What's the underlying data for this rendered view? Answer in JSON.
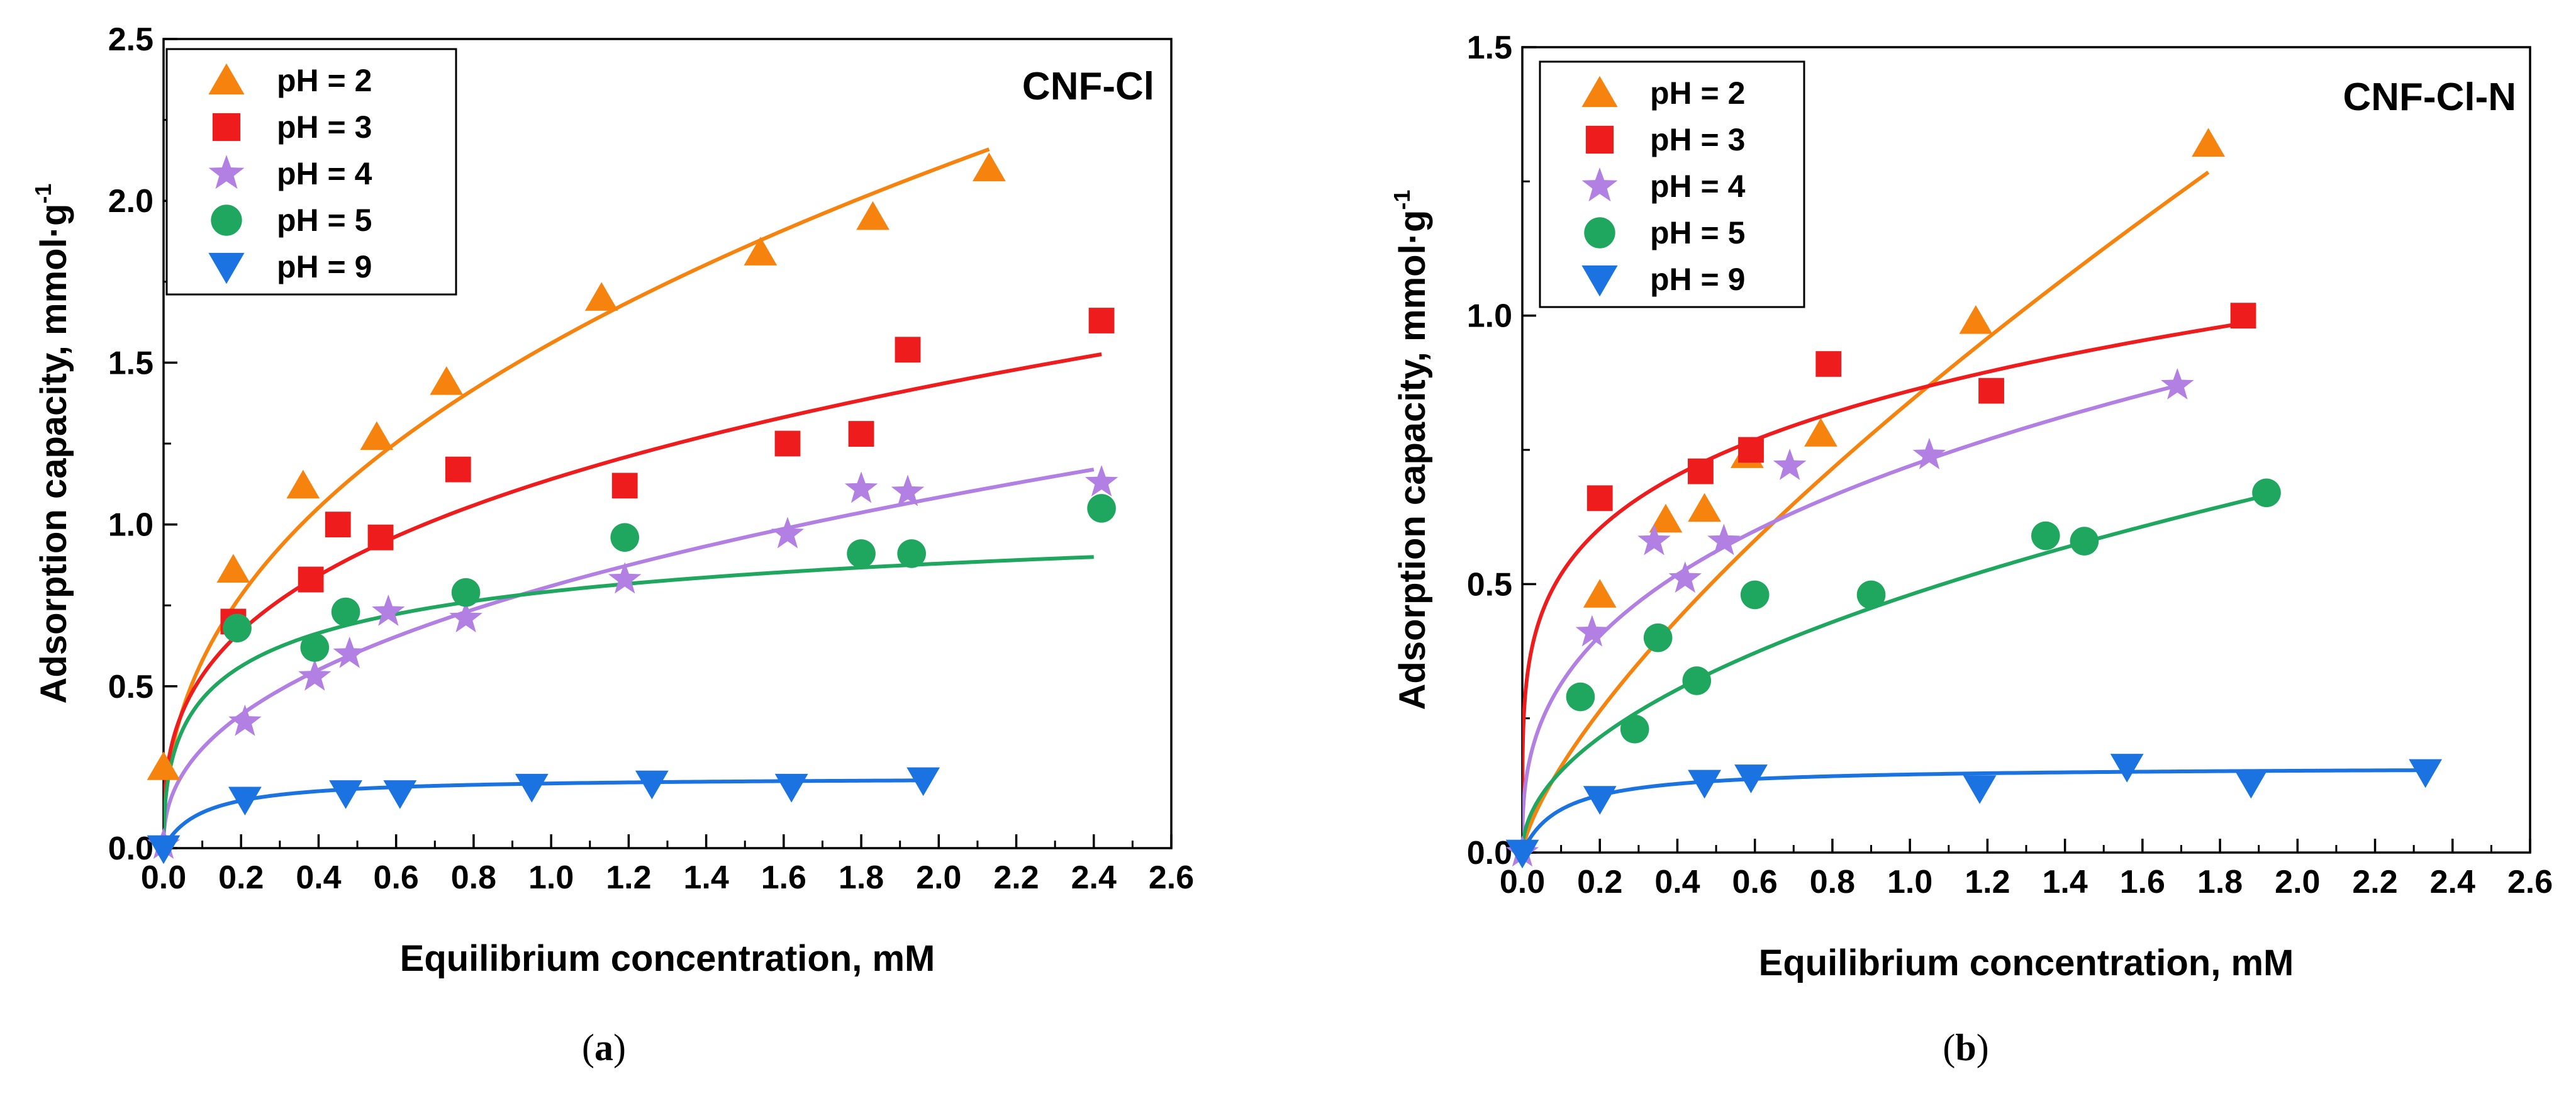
{
  "chart_data": [
    {
      "type": "scatter",
      "panel_label": "(a)",
      "annotation": "CNF-Cl",
      "xlabel": "Equilibrium concentration, mM",
      "ylabel": "Adsorption capacity, mmol·g",
      "ylabel_superscript": "-1",
      "xlim": [
        0.0,
        2.6
      ],
      "ylim": [
        0.0,
        2.5
      ],
      "x_ticks": [
        "0.0",
        "0.2",
        "0.4",
        "0.6",
        "0.8",
        "1.0",
        "1.2",
        "1.4",
        "1.6",
        "1.8",
        "2.0",
        "2.2",
        "2.4",
        "2.6"
      ],
      "y_ticks": [
        "0.0",
        "0.5",
        "1.0",
        "1.5",
        "2.0",
        "2.5"
      ],
      "grid": false,
      "legend_position": "top-left",
      "series": [
        {
          "name": "pH = 2",
          "color": "#F7830F",
          "marker": "triangle-up",
          "points": [
            [
              0.0,
              0.25
            ],
            [
              0.18,
              0.86
            ],
            [
              0.36,
              1.12
            ],
            [
              0.55,
              1.27
            ],
            [
              0.73,
              1.44
            ],
            [
              1.13,
              1.7
            ],
            [
              1.54,
              1.84
            ],
            [
              1.83,
              1.95
            ],
            [
              2.13,
              2.1
            ]
          ],
          "fit": {
            "model": "freundlich",
            "k": 1.56,
            "n": 0.43,
            "x_max": 2.13
          }
        },
        {
          "name": "pH = 3",
          "color": "#EE1C1C",
          "marker": "square",
          "points": [
            [
              0.18,
              0.7
            ],
            [
              0.38,
              0.83
            ],
            [
              0.45,
              1.0
            ],
            [
              0.56,
              0.96
            ],
            [
              0.76,
              1.17
            ],
            [
              1.19,
              1.12
            ],
            [
              1.61,
              1.25
            ],
            [
              1.8,
              1.28
            ],
            [
              1.92,
              1.54
            ],
            [
              2.42,
              1.63
            ]
          ],
          "fit": {
            "model": "freundlich",
            "k": 1.14,
            "n": 0.33,
            "x_max": 2.42
          }
        },
        {
          "name": "pH = 4",
          "color": "#B27FE3",
          "marker": "star",
          "points": [
            [
              0.0,
              0.01
            ],
            [
              0.21,
              0.39
            ],
            [
              0.39,
              0.53
            ],
            [
              0.48,
              0.6
            ],
            [
              0.58,
              0.73
            ],
            [
              0.78,
              0.71
            ],
            [
              1.19,
              0.83
            ],
            [
              1.61,
              0.97
            ],
            [
              1.8,
              1.11
            ],
            [
              1.92,
              1.1
            ],
            [
              2.42,
              1.13
            ]
          ],
          "fit": {
            "model": "freundlich",
            "k": 0.81,
            "n": 0.42,
            "x_max": 2.4
          }
        },
        {
          "name": "pH = 5",
          "color": "#1FA75F",
          "marker": "circle",
          "points": [
            [
              0.19,
              0.68
            ],
            [
              0.39,
              0.62
            ],
            [
              0.47,
              0.73
            ],
            [
              0.78,
              0.79
            ],
            [
              1.19,
              0.96
            ],
            [
              1.8,
              0.91
            ],
            [
              1.93,
              0.91
            ],
            [
              2.42,
              1.05
            ]
          ],
          "fit": {
            "model": "langmuir_freundlich",
            "qmax": 1.19,
            "k": 4.0,
            "n": 0.5,
            "x_max": 2.4
          }
        },
        {
          "name": "pH = 9",
          "color": "#1A73E0",
          "marker": "triangle-down",
          "points": [
            [
              0.0,
              0.0
            ],
            [
              0.21,
              0.15
            ],
            [
              0.47,
              0.17
            ],
            [
              0.61,
              0.17
            ],
            [
              0.95,
              0.19
            ],
            [
              1.26,
              0.2
            ],
            [
              1.62,
              0.19
            ],
            [
              1.96,
              0.21
            ]
          ],
          "fit": {
            "model": "langmuir",
            "qmax": 0.22,
            "k": 10.0,
            "x_max": 1.96
          }
        }
      ]
    },
    {
      "type": "scatter",
      "panel_label": "(b)",
      "annotation": "CNF-Cl-N",
      "xlabel": "Equilibrium concentration, mM",
      "ylabel": "Adsorption capacity, mmol·g",
      "ylabel_superscript": "-1",
      "xlim": [
        0.0,
        2.6
      ],
      "ylim": [
        0.0,
        1.5
      ],
      "x_ticks": [
        "0.0",
        "0.2",
        "0.4",
        "0.6",
        "0.8",
        "1.0",
        "1.2",
        "1.4",
        "1.6",
        "1.8",
        "2.0",
        "2.2",
        "2.4",
        "2.6"
      ],
      "y_ticks": [
        "0.0",
        "0.5",
        "1.0",
        "1.5"
      ],
      "grid": false,
      "legend_position": "top-left",
      "series": [
        {
          "name": "pH = 2",
          "color": "#F7830F",
          "marker": "triangle-up",
          "points": [
            [
              0.2,
              0.48
            ],
            [
              0.37,
              0.62
            ],
            [
              0.47,
              0.64
            ],
            [
              0.58,
              0.74
            ],
            [
              0.77,
              0.78
            ],
            [
              1.17,
              0.99
            ],
            [
              1.77,
              1.32
            ]
          ],
          "fit": {
            "model": "freundlich",
            "k": 0.84,
            "n": 0.72,
            "x_max": 1.77
          }
        },
        {
          "name": "pH = 3",
          "color": "#EE1C1C",
          "marker": "square",
          "points": [
            [
              0.2,
              0.66
            ],
            [
              0.46,
              0.71
            ],
            [
              0.59,
              0.75
            ],
            [
              0.79,
              0.91
            ],
            [
              1.21,
              0.86
            ],
            [
              1.86,
              1.0
            ]
          ],
          "fit": {
            "model": "freundlich",
            "k": 0.86,
            "n": 0.22,
            "x_max": 1.84
          }
        },
        {
          "name": "pH = 4",
          "color": "#B27FE3",
          "marker": "star",
          "points": [
            [
              0.0,
              0.0
            ],
            [
              0.18,
              0.41
            ],
            [
              0.34,
              0.58
            ],
            [
              0.42,
              0.51
            ],
            [
              0.52,
              0.58
            ],
            [
              0.69,
              0.72
            ],
            [
              1.05,
              0.74
            ],
            [
              1.69,
              0.87
            ]
          ],
          "fit": {
            "model": "freundlich",
            "k": 0.72,
            "n": 0.36,
            "x_max": 1.69
          }
        },
        {
          "name": "pH = 5",
          "color": "#1FA75F",
          "marker": "circle",
          "points": [
            [
              0.15,
              0.29
            ],
            [
              0.29,
              0.23
            ],
            [
              0.35,
              0.4
            ],
            [
              0.45,
              0.32
            ],
            [
              0.6,
              0.48
            ],
            [
              0.9,
              0.48
            ],
            [
              1.35,
              0.59
            ],
            [
              1.45,
              0.58
            ],
            [
              1.92,
              0.67
            ]
          ],
          "fit": {
            "model": "freundlich",
            "k": 0.48,
            "n": 0.5,
            "x_max": 1.92
          }
        },
        {
          "name": "pH = 9",
          "color": "#1A73E0",
          "marker": "triangle-down",
          "points": [
            [
              0.0,
              0.0
            ],
            [
              0.2,
              0.1
            ],
            [
              0.47,
              0.13
            ],
            [
              0.59,
              0.14
            ],
            [
              1.18,
              0.12
            ],
            [
              1.56,
              0.16
            ],
            [
              1.88,
              0.13
            ],
            [
              2.33,
              0.15
            ]
          ],
          "fit": {
            "model": "langmuir",
            "qmax": 0.16,
            "k": 10.0,
            "x_max": 2.33
          }
        }
      ]
    }
  ]
}
